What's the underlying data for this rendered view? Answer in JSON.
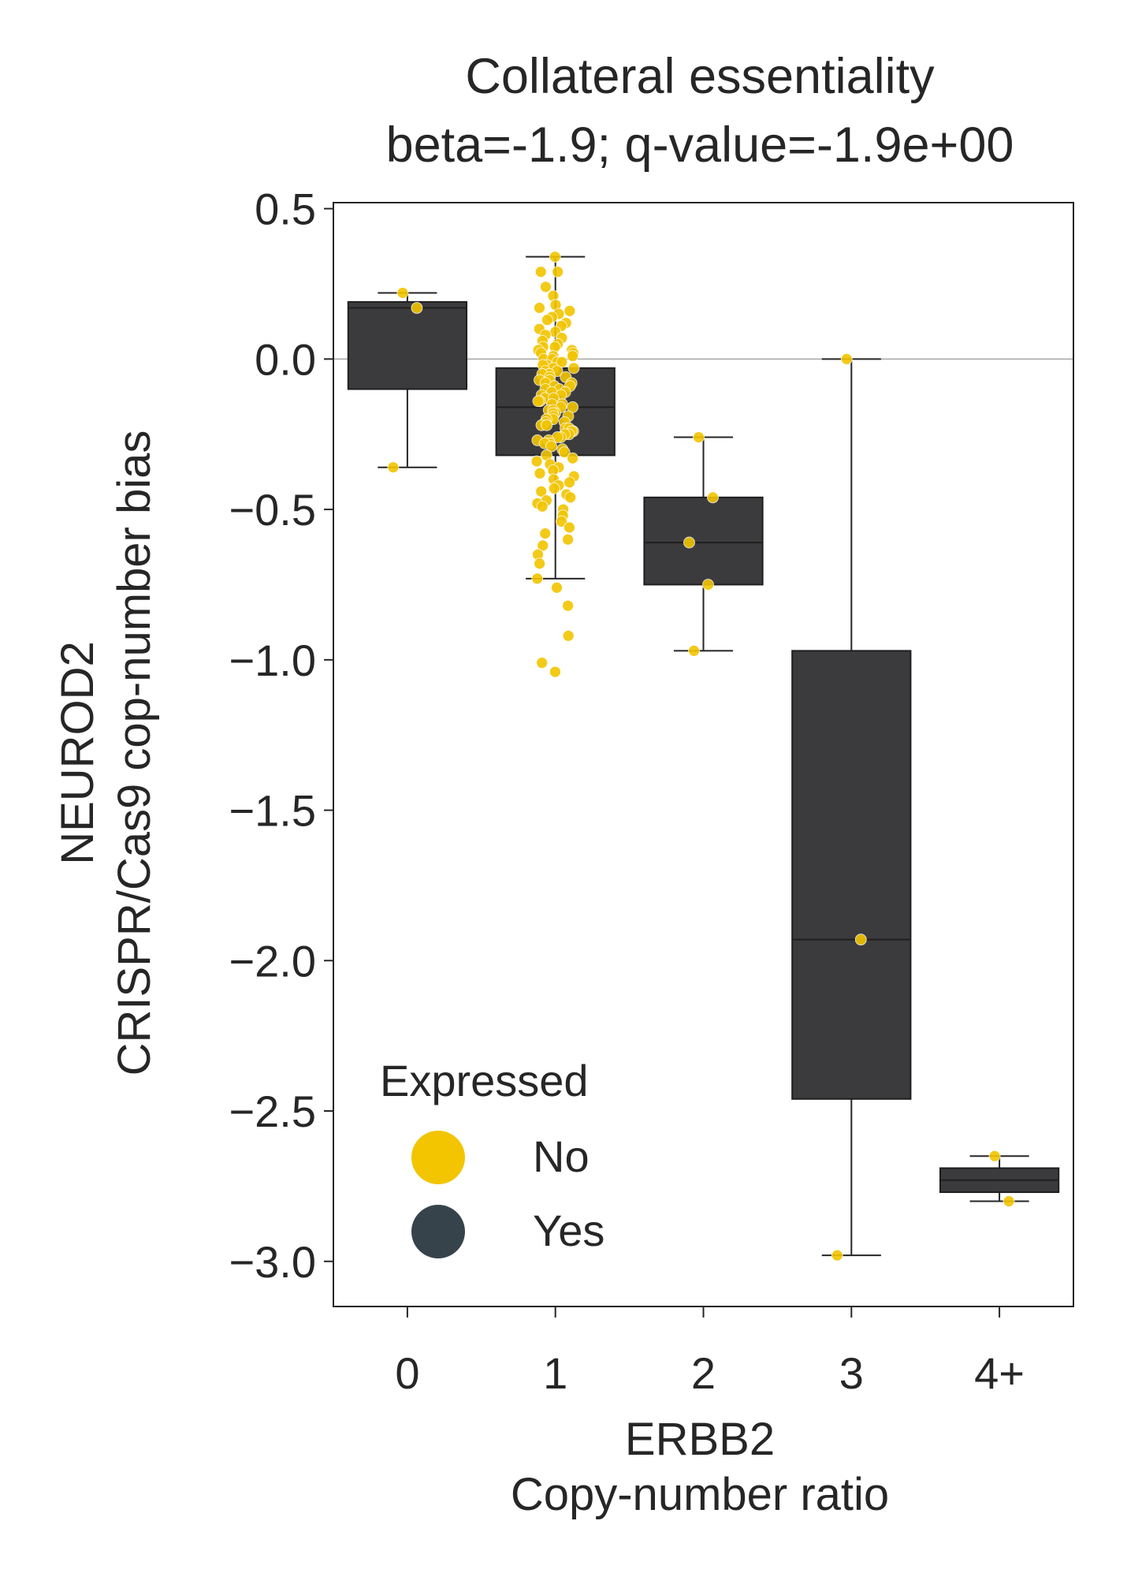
{
  "chart_data": {
    "type": "box",
    "title": "Collateral essentiality",
    "subtitle": "beta=-1.9; q-value=-1.9e+00",
    "ylabel_line1": "NEUROD2",
    "ylabel_line2": "CRISPR/Cas9 cop-number bias",
    "xlabel_line1": "ERBB2",
    "xlabel_line2": "Copy-number ratio",
    "categories": [
      "0",
      "1",
      "2",
      "3",
      "4+"
    ],
    "ylim": [
      -3.15,
      0.52
    ],
    "yticks": [
      0.5,
      0.0,
      -0.5,
      -1.0,
      -1.5,
      -2.0,
      -2.5,
      -3.0
    ],
    "ytick_labels": [
      "0.5",
      "0.0",
      "−0.5",
      "−1.0",
      "−1.5",
      "−2.0",
      "−2.5",
      "−3.0"
    ],
    "reference_line_y": 0.0,
    "grid": false,
    "boxes": [
      {
        "category": "0",
        "whislo": -0.36,
        "q1": -0.1,
        "median": 0.17,
        "q3": 0.19,
        "whishi": 0.22
      },
      {
        "category": "1",
        "whislo": -0.73,
        "q1": -0.32,
        "median": -0.16,
        "q3": -0.03,
        "whishi": 0.34
      },
      {
        "category": "2",
        "whislo": -0.97,
        "q1": -0.75,
        "median": -0.61,
        "q3": -0.46,
        "whishi": -0.26
      },
      {
        "category": "3",
        "whislo": -2.98,
        "q1": -2.46,
        "median": -1.93,
        "q3": -0.97,
        "whishi": 0.0
      },
      {
        "category": "4+",
        "whislo": -2.8,
        "q1": -2.77,
        "median": -2.73,
        "q3": -2.69,
        "whishi": -2.65
      }
    ],
    "points": [
      {
        "category": "0",
        "values": [
          0.22,
          0.17,
          -0.36
        ]
      },
      {
        "category": "1",
        "values": [
          0.34,
          0.29,
          0.29,
          0.24,
          0.21,
          0.18,
          0.17,
          0.16,
          0.15,
          0.14,
          0.13,
          0.12,
          0.11,
          0.1,
          0.09,
          0.08,
          0.07,
          0.06,
          0.05,
          0.04,
          0.04,
          0.03,
          0.03,
          0.02,
          0.02,
          0.01,
          0.01,
          0.0,
          0.0,
          -0.01,
          -0.01,
          -0.02,
          -0.02,
          -0.03,
          -0.03,
          -0.04,
          -0.04,
          -0.05,
          -0.05,
          -0.06,
          -0.06,
          -0.07,
          -0.07,
          -0.08,
          -0.08,
          -0.09,
          -0.09,
          -0.1,
          -0.1,
          -0.11,
          -0.11,
          -0.12,
          -0.12,
          -0.13,
          -0.13,
          -0.14,
          -0.14,
          -0.15,
          -0.15,
          -0.16,
          -0.16,
          -0.17,
          -0.17,
          -0.18,
          -0.18,
          -0.19,
          -0.19,
          -0.2,
          -0.2,
          -0.21,
          -0.21,
          -0.22,
          -0.22,
          -0.23,
          -0.23,
          -0.24,
          -0.24,
          -0.25,
          -0.25,
          -0.26,
          -0.26,
          -0.27,
          -0.27,
          -0.28,
          -0.28,
          -0.29,
          -0.3,
          -0.31,
          -0.32,
          -0.33,
          -0.34,
          -0.35,
          -0.36,
          -0.37,
          -0.38,
          -0.39,
          -0.4,
          -0.41,
          -0.42,
          -0.43,
          -0.44,
          -0.45,
          -0.46,
          -0.47,
          -0.48,
          -0.49,
          -0.5,
          -0.52,
          -0.54,
          -0.56,
          -0.58,
          -0.6,
          -0.62,
          -0.65,
          -0.68,
          -0.73,
          -0.76,
          -0.82,
          -0.92,
          -1.01,
          -1.04
        ]
      },
      {
        "category": "2",
        "values": [
          -0.26,
          -0.46,
          -0.61,
          -0.75,
          -0.97
        ]
      },
      {
        "category": "3",
        "values": [
          0.0,
          -1.93,
          -2.98
        ]
      },
      {
        "category": "4+",
        "values": [
          -2.65,
          -2.8
        ]
      }
    ],
    "colors": {
      "box_fill": "#3b3b3d",
      "box_edge": "#1f1f1f",
      "point_no": "#f2c500",
      "point_yes": "#37434b",
      "reference_line": "#a6a6a6"
    },
    "legend": {
      "title": "Expressed",
      "placement": "bottom-left",
      "items": [
        {
          "label": "No",
          "color": "#f2c500"
        },
        {
          "label": "Yes",
          "color": "#37434b"
        }
      ]
    }
  }
}
